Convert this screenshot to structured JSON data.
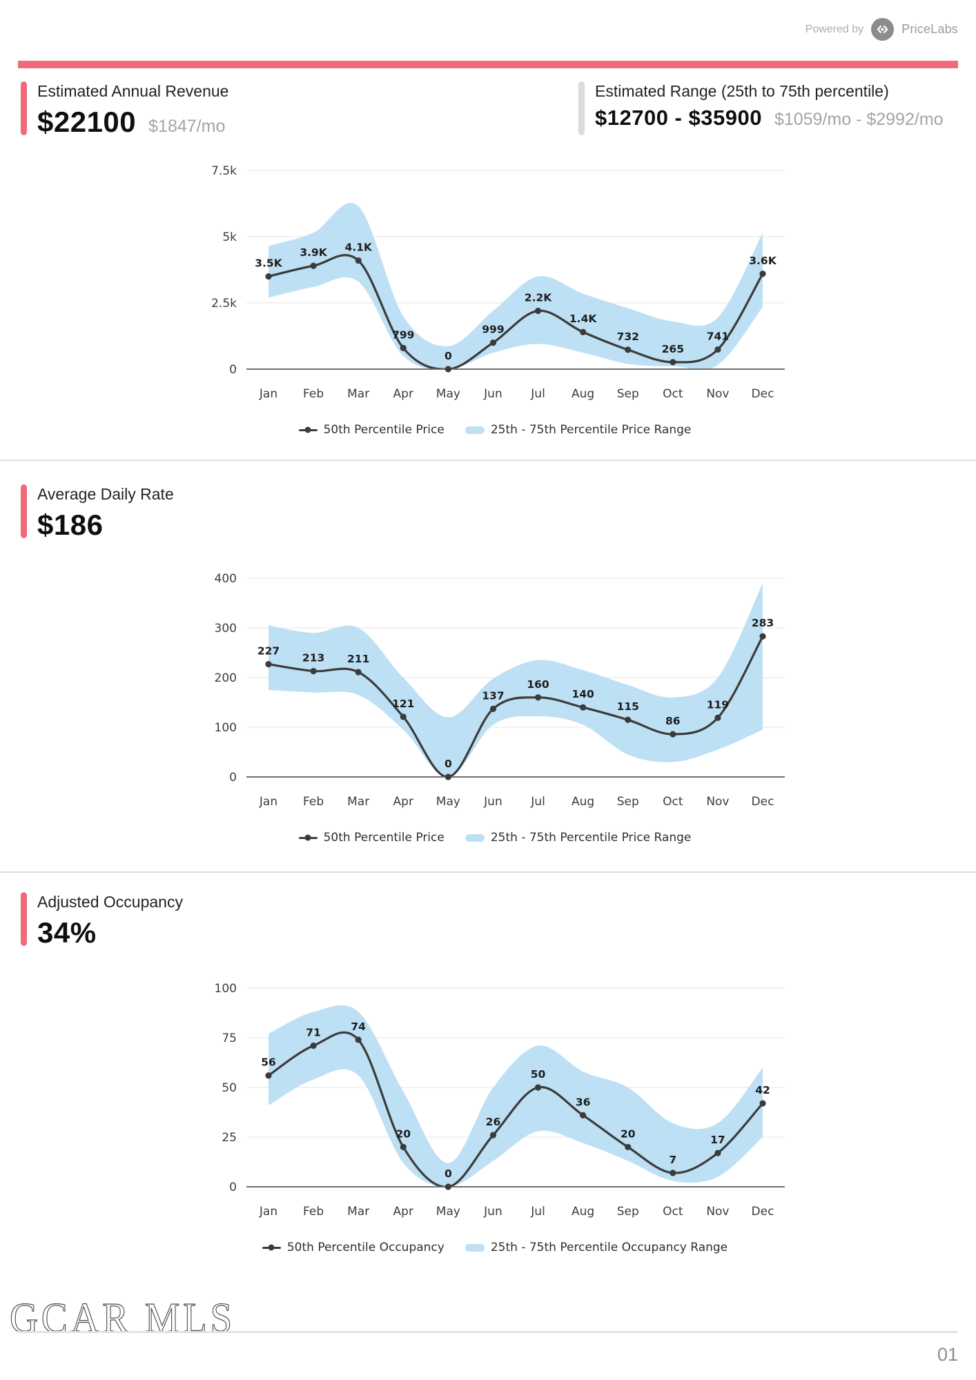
{
  "page": {
    "powered_by": "Powered by",
    "brand": "PriceLabs",
    "watermark": "GCAR MLS",
    "page_number": "01"
  },
  "colors": {
    "accent_red": "#F06A78",
    "accent_gray": "#DCDCDC",
    "band_blue": "#BEE0F5",
    "line_dark": "#3B3B3B",
    "grid_gray": "#EDEDED",
    "axis_gray": "#6F6F6F"
  },
  "sections": [
    {
      "title": "Estimated Annual Revenue",
      "value": "$22100",
      "sub_value": "$1847/mo",
      "aside": {
        "title": "Estimated Range (25th to 75th percentile)",
        "value": "$12700 - $35900",
        "sub_value": "$1059/mo - $2992/mo"
      }
    },
    {
      "title": "Average Daily Rate",
      "value": "$186"
    },
    {
      "title": "Adjusted Occupancy",
      "value": "34%"
    }
  ],
  "chart_data": [
    {
      "type": "line",
      "categories": [
        "Jan",
        "Feb",
        "Mar",
        "Apr",
        "May",
        "Jun",
        "Jul",
        "Aug",
        "Sep",
        "Oct",
        "Nov",
        "Dec"
      ],
      "series": [
        {
          "name": "50th Percentile Price",
          "values": [
            3500,
            3900,
            4100,
            799,
            0,
            999,
            2200,
            1400,
            732,
            265,
            741,
            3600
          ],
          "labels": [
            "3.5K",
            "3.9K",
            "4.1K",
            "799",
            "0",
            "999",
            "2.2K",
            "1.4K",
            "732",
            "265",
            "741",
            "3.6K"
          ]
        },
        {
          "name": "25th - 75th Percentile Price Range",
          "band_upper": [
            4650,
            5150,
            6150,
            2000,
            870,
            2200,
            3500,
            2850,
            2300,
            1800,
            1950,
            5150
          ],
          "band_lower": [
            2700,
            3100,
            3300,
            500,
            0,
            620,
            950,
            620,
            200,
            110,
            160,
            2350
          ]
        }
      ],
      "ylim": [
        0,
        7500
      ],
      "yticks": [
        0,
        2500,
        5000,
        7500
      ],
      "ytick_labels": [
        "0",
        "2.5k",
        "5k",
        "7.5k"
      ],
      "legend": [
        "50th Percentile Price",
        "25th - 75th Percentile Price Range"
      ],
      "grid": true,
      "legend_position": "bottom"
    },
    {
      "type": "line",
      "categories": [
        "Jan",
        "Feb",
        "Mar",
        "Apr",
        "May",
        "Jun",
        "Jul",
        "Aug",
        "Sep",
        "Oct",
        "Nov",
        "Dec"
      ],
      "series": [
        {
          "name": "50th Percentile Price",
          "values": [
            227,
            213,
            211,
            121,
            0,
            137,
            160,
            140,
            115,
            86,
            119,
            283
          ],
          "labels": [
            "227",
            "213",
            "211",
            "121",
            "0",
            "137",
            "160",
            "140",
            "115",
            "86",
            "119",
            "283"
          ]
        },
        {
          "name": "25th - 75th Percentile Price Range",
          "band_upper": [
            305,
            290,
            300,
            200,
            120,
            198,
            235,
            215,
            185,
            160,
            200,
            390
          ],
          "band_lower": [
            175,
            170,
            165,
            95,
            0,
            105,
            122,
            105,
            45,
            30,
            55,
            95
          ]
        }
      ],
      "ylim": [
        0,
        400
      ],
      "yticks": [
        0,
        100,
        200,
        300,
        400
      ],
      "ytick_labels": [
        "0",
        "100",
        "200",
        "300",
        "400"
      ],
      "legend": [
        "50th Percentile Price",
        "25th - 75th Percentile Price Range"
      ],
      "grid": true,
      "legend_position": "bottom"
    },
    {
      "type": "line",
      "categories": [
        "Jan",
        "Feb",
        "Mar",
        "Apr",
        "May",
        "Jun",
        "Jul",
        "Aug",
        "Sep",
        "Oct",
        "Nov",
        "Dec"
      ],
      "series": [
        {
          "name": "50th Percentile Occupancy",
          "values": [
            56,
            71,
            74,
            20,
            0,
            26,
            50,
            36,
            20,
            7,
            17,
            42
          ],
          "labels": [
            "56",
            "71",
            "74",
            "20",
            "0",
            "26",
            "50",
            "36",
            "20",
            "7",
            "17",
            "42"
          ]
        },
        {
          "name": "25th - 75th Percentile Occupancy Range",
          "band_upper": [
            77,
            88,
            88,
            48,
            12,
            50,
            71,
            58,
            50,
            32,
            32,
            60
          ],
          "band_lower": [
            41,
            54,
            56,
            12,
            0,
            13,
            28,
            22,
            13,
            3,
            5,
            25
          ]
        }
      ],
      "ylim": [
        0,
        100
      ],
      "yticks": [
        0,
        25,
        50,
        75,
        100
      ],
      "ytick_labels": [
        "0",
        "25",
        "50",
        "75",
        "100"
      ],
      "legend": [
        "50th Percentile Occupancy",
        "25th - 75th Percentile Occupancy Range"
      ],
      "grid": true,
      "legend_position": "bottom"
    }
  ]
}
